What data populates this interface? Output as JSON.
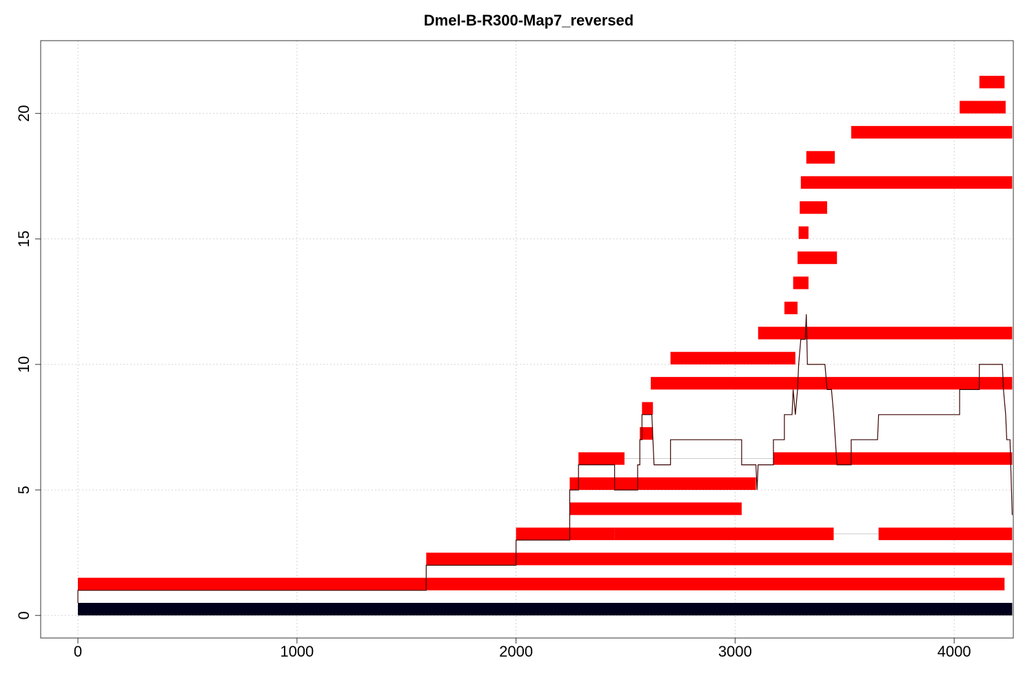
{
  "chart_data": {
    "type": "bar",
    "title": "Dmel-B-R300-Map7_reversed",
    "xlim": [
      -170,
      4270
    ],
    "ylim": [
      -0.9,
      22.9
    ],
    "x_ticks": [
      "0",
      "1000",
      "2000",
      "3000",
      "4000"
    ],
    "x_tick_values": [
      0,
      1000,
      2000,
      3000,
      4000
    ],
    "y_ticks": [
      "0",
      "5",
      "10",
      "15",
      "20"
    ],
    "y_tick_values": [
      0,
      5,
      10,
      15,
      20
    ],
    "grid": true,
    "colors": {
      "segment": "#ff0000",
      "reference": "#00001a",
      "coverage": "#3b0000",
      "link": "#cccccc"
    },
    "reference": {
      "x_start": 0,
      "x_end": 4265,
      "y": 0.25
    },
    "segments": [
      {
        "x_start": 0,
        "x_end": 1590,
        "y": 1.25
      },
      {
        "x_start": 1590,
        "x_end": 4230,
        "y": 1.25
      },
      {
        "x_start": 1590,
        "x_end": 2000,
        "y": 2.25
      },
      {
        "x_start": 2000,
        "x_end": 4265,
        "y": 2.25
      },
      {
        "x_start": 2000,
        "x_end": 2450,
        "y": 3.25
      },
      {
        "x_start": 2450,
        "x_end": 3450,
        "y": 3.25
      },
      {
        "x_start": 3655,
        "x_end": 4265,
        "y": 3.25
      },
      {
        "x_start": 2245,
        "x_end": 3030,
        "y": 4.25
      },
      {
        "x_start": 2245,
        "x_end": 3095,
        "y": 5.25
      },
      {
        "x_start": 2285,
        "x_end": 2495,
        "y": 6.25
      },
      {
        "x_start": 3175,
        "x_end": 4265,
        "y": 6.25
      },
      {
        "x_start": 2565,
        "x_end": 2625,
        "y": 7.25
      },
      {
        "x_start": 2575,
        "x_end": 2625,
        "y": 8.25
      },
      {
        "x_start": 2615,
        "x_end": 4265,
        "y": 9.25
      },
      {
        "x_start": 2705,
        "x_end": 3275,
        "y": 10.25
      },
      {
        "x_start": 3105,
        "x_end": 4265,
        "y": 11.25
      },
      {
        "x_start": 3225,
        "x_end": 3285,
        "y": 12.25
      },
      {
        "x_start": 3265,
        "x_end": 3335,
        "y": 13.25
      },
      {
        "x_start": 3285,
        "x_end": 3465,
        "y": 14.25
      },
      {
        "x_start": 3290,
        "x_end": 3335,
        "y": 15.25
      },
      {
        "x_start": 3295,
        "x_end": 3420,
        "y": 16.25
      },
      {
        "x_start": 3300,
        "x_end": 4265,
        "y": 17.25
      },
      {
        "x_start": 3325,
        "x_end": 3455,
        "y": 18.25
      },
      {
        "x_start": 3530,
        "x_end": 4265,
        "y": 19.25
      },
      {
        "x_start": 4025,
        "x_end": 4235,
        "y": 20.25
      },
      {
        "x_start": 4115,
        "x_end": 4230,
        "y": 21.25
      }
    ],
    "links": [
      {
        "x_start": 2495,
        "x_end": 3175,
        "y": 6.25
      },
      {
        "x_start": 3450,
        "x_end": 3655,
        "y": 3.25
      }
    ],
    "coverage": [
      [
        0,
        0.5
      ],
      [
        0,
        1
      ],
      [
        1590,
        1
      ],
      [
        1590,
        2
      ],
      [
        2000,
        2
      ],
      [
        2000,
        3
      ],
      [
        2245,
        3
      ],
      [
        2245,
        5
      ],
      [
        2285,
        5
      ],
      [
        2285,
        6
      ],
      [
        2450,
        6
      ],
      [
        2450,
        5
      ],
      [
        2495,
        5
      ],
      [
        2495,
        5
      ],
      [
        2555,
        5
      ],
      [
        2555,
        6
      ],
      [
        2565,
        6
      ],
      [
        2565,
        7
      ],
      [
        2575,
        7
      ],
      [
        2575,
        8
      ],
      [
        2620,
        8
      ],
      [
        2625,
        7
      ],
      [
        2630,
        6
      ],
      [
        2705,
        6
      ],
      [
        2705,
        7
      ],
      [
        2960,
        7
      ],
      [
        3030,
        7
      ],
      [
        3030,
        6
      ],
      [
        3095,
        6
      ],
      [
        3100,
        5
      ],
      [
        3105,
        6
      ],
      [
        3175,
        6
      ],
      [
        3175,
        7
      ],
      [
        3225,
        7
      ],
      [
        3225,
        8
      ],
      [
        3260,
        8
      ],
      [
        3265,
        9
      ],
      [
        3275,
        8
      ],
      [
        3285,
        9
      ],
      [
        3290,
        10
      ],
      [
        3300,
        11
      ],
      [
        3320,
        11
      ],
      [
        3325,
        12
      ],
      [
        3330,
        10
      ],
      [
        3410,
        10
      ],
      [
        3420,
        9
      ],
      [
        3440,
        9
      ],
      [
        3450,
        8
      ],
      [
        3465,
        6
      ],
      [
        3530,
        6
      ],
      [
        3530,
        7
      ],
      [
        3650,
        7
      ],
      [
        3655,
        8
      ],
      [
        4025,
        8
      ],
      [
        4025,
        9
      ],
      [
        4115,
        9
      ],
      [
        4115,
        10
      ],
      [
        4220,
        10
      ],
      [
        4225,
        9
      ],
      [
        4235,
        8
      ],
      [
        4240,
        7
      ],
      [
        4255,
        7
      ],
      [
        4265,
        4
      ]
    ]
  }
}
